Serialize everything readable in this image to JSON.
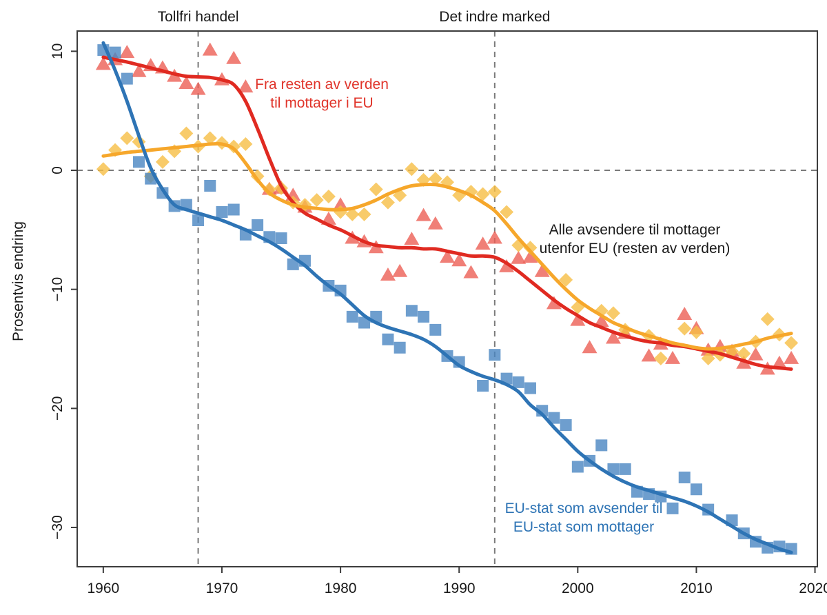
{
  "figure": {
    "ylabel": "Prosentvis endring",
    "event_labels": [
      {
        "text": "Tollfri handel",
        "year": 1968
      },
      {
        "text": "Det indre marked",
        "year": 1993
      }
    ]
  },
  "colors": {
    "red_line": "#E02A21",
    "red_marker": "#EC5F55",
    "yellow_line": "#F6A72B",
    "yellow_marker": "#F6BE45",
    "blue_line": "#2E74B5",
    "blue_marker": "#4A86C2",
    "dash_gray": "#7a7a7a",
    "border": "#3d3d3d",
    "text": "#1a1a1a"
  },
  "chart_data": {
    "type": "scatter",
    "title": "",
    "xlabel": "",
    "ylabel": "Prosentvis endring",
    "x_ticks": [
      1960,
      1970,
      1980,
      1990,
      2000,
      2010,
      2020
    ],
    "y_ticks": [
      10,
      0,
      -10,
      -20,
      -30
    ],
    "xlim": [
      1957.8,
      2020.2
    ],
    "ylim": [
      -33.3,
      11.7
    ],
    "grid": false,
    "hline_y": 0,
    "vlines": [
      {
        "year": 1968,
        "label": "Tollfri handel"
      },
      {
        "year": 1993,
        "label": "Det indre marked"
      }
    ],
    "years": [
      1960,
      1961,
      1962,
      1963,
      1964,
      1965,
      1966,
      1967,
      1968,
      1969,
      1970,
      1971,
      1972,
      1973,
      1974,
      1975,
      1976,
      1977,
      1978,
      1979,
      1980,
      1981,
      1982,
      1983,
      1984,
      1985,
      1986,
      1987,
      1988,
      1989,
      1990,
      1991,
      1992,
      1993,
      1994,
      1995,
      1996,
      1997,
      1998,
      1999,
      2000,
      2001,
      2002,
      2003,
      2004,
      2005,
      2006,
      2007,
      2008,
      2009,
      2010,
      2011,
      2012,
      2013,
      2014,
      2015,
      2016,
      2017,
      2018
    ],
    "series": [
      {
        "id": "red",
        "name": "Fra resten av verden til mottager i EU",
        "marker": "triangle",
        "label_lines": [
          "Fra resten av verden",
          "til mottager i EU"
        ],
        "points": [
          8.9,
          9.3,
          9.9,
          8.3,
          8.8,
          8.6,
          7.9,
          7.3,
          6.8,
          10.1,
          7.6,
          9.4,
          7.0,
          null,
          -1.6,
          -1.5,
          -2.1,
          -3.1,
          null,
          -4.1,
          -2.9,
          -5.7,
          -6.0,
          -6.5,
          -8.8,
          -8.5,
          -5.8,
          -3.8,
          -4.5,
          -7.3,
          -7.6,
          -8.6,
          -6.2,
          -5.7,
          -8.1,
          -7.4,
          -7.3,
          -8.5,
          -11.2,
          null,
          -12.6,
          -14.9,
          -12.7,
          -14.1,
          -13.7,
          null,
          -15.6,
          -14.6,
          -15.8,
          -12.1,
          -13.3,
          -15.1,
          -14.8,
          -15.2,
          -16.2,
          -15.5,
          -16.7,
          -16.2,
          -15.8
        ],
        "line": [
          9.5,
          9.3,
          9.1,
          8.85,
          8.6,
          8.35,
          8.1,
          7.9,
          7.85,
          7.8,
          7.6,
          7.2,
          5.8,
          3.5,
          1.0,
          -1.3,
          -2.7,
          -3.6,
          -4.1,
          -4.6,
          -5.0,
          -5.5,
          -6.0,
          -6.3,
          -6.4,
          -6.5,
          -6.5,
          -6.6,
          -6.6,
          -6.8,
          -7.0,
          -7.2,
          -7.2,
          -7.3,
          -7.8,
          -8.5,
          -9.3,
          -10.1,
          -10.9,
          -11.6,
          -12.2,
          -12.8,
          -13.2,
          -13.6,
          -13.9,
          -14.2,
          -14.4,
          -14.5,
          -14.7,
          -14.8,
          -15.0,
          -15.2,
          -15.4,
          -15.7,
          -16.0,
          -16.3,
          -16.5,
          -16.6,
          -16.7
        ]
      },
      {
        "id": "yellow",
        "name": "Alle avsendere til mottager utenfor EU (resten av verden)",
        "marker": "diamond",
        "label_lines": [
          "Alle avsendere til mottager",
          "utenfor EU (resten av verden)"
        ],
        "points": [
          0.1,
          1.7,
          2.7,
          2.4,
          -0.5,
          0.7,
          1.6,
          3.1,
          2.0,
          2.7,
          2.3,
          2.0,
          2.2,
          -0.5,
          -1.6,
          -1.5,
          -2.7,
          -2.9,
          -2.5,
          -2.2,
          -3.5,
          -3.7,
          -3.7,
          -1.6,
          -2.7,
          -2.1,
          0.1,
          -0.8,
          -0.7,
          -1.0,
          -2.1,
          -1.8,
          -2.0,
          -1.8,
          -3.5,
          -6.3,
          -6.5,
          null,
          null,
          -9.2,
          -11.5,
          null,
          -11.8,
          -12.0,
          -13.4,
          null,
          -13.9,
          -15.8,
          null,
          -13.3,
          -13.6,
          -15.8,
          -15.5,
          -15.2,
          -15.4,
          -14.4,
          -12.5,
          -13.8,
          -14.5
        ],
        "line": [
          1.2,
          1.35,
          1.5,
          1.6,
          1.7,
          1.8,
          1.9,
          2.0,
          2.1,
          2.2,
          2.2,
          1.8,
          0.6,
          -0.8,
          -1.9,
          -2.5,
          -2.9,
          -3.1,
          -3.2,
          -3.3,
          -3.3,
          -3.2,
          -2.9,
          -2.5,
          -2.0,
          -1.6,
          -1.3,
          -1.2,
          -1.2,
          -1.4,
          -1.7,
          -2.1,
          -2.7,
          -3.4,
          -4.5,
          -5.7,
          -6.8,
          -7.9,
          -9.0,
          -10.0,
          -10.9,
          -11.6,
          -12.2,
          -12.8,
          -13.2,
          -13.6,
          -13.9,
          -14.2,
          -14.5,
          -14.7,
          -14.9,
          -15.0,
          -14.95,
          -14.8,
          -14.6,
          -14.4,
          -14.1,
          -13.9,
          -13.7
        ]
      },
      {
        "id": "blue",
        "name": "EU-stat som avsender til EU-stat som mottager",
        "marker": "square",
        "label_lines": [
          "EU-stat som avsender til",
          "EU-stat som mottager"
        ],
        "points": [
          10.1,
          9.9,
          7.7,
          0.7,
          -0.7,
          -1.9,
          -3.0,
          -2.9,
          -4.2,
          -1.3,
          -3.5,
          -3.3,
          -5.4,
          -4.6,
          -5.6,
          -5.7,
          -7.9,
          -7.6,
          null,
          -9.7,
          -10.1,
          -12.3,
          -12.8,
          -12.3,
          -14.2,
          -14.9,
          -11.8,
          -12.3,
          -13.4,
          -15.6,
          -16.1,
          null,
          -18.1,
          -15.5,
          -17.5,
          -17.8,
          -18.3,
          -20.2,
          -20.8,
          -21.4,
          -24.9,
          -24.4,
          -23.1,
          -25.1,
          -25.1,
          -27.0,
          -27.2,
          -27.4,
          -28.4,
          -25.8,
          -26.8,
          -28.5,
          null,
          -29.4,
          -30.5,
          -31.2,
          -31.7,
          -31.6,
          -31.8
        ],
        "line": [
          10.7,
          8.4,
          5.8,
          2.9,
          0.2,
          -1.6,
          -2.9,
          -3.3,
          -3.6,
          -3.9,
          -4.2,
          -4.6,
          -5.0,
          -5.5,
          -6.0,
          -6.6,
          -7.3,
          -8.0,
          -8.9,
          -9.7,
          -10.4,
          -11.3,
          -12.2,
          -12.8,
          -13.2,
          -13.5,
          -13.8,
          -14.2,
          -14.8,
          -15.6,
          -16.4,
          -16.9,
          -17.3,
          -17.6,
          -18.0,
          -18.6,
          -19.7,
          -20.5,
          -21.6,
          -22.6,
          -23.6,
          -24.4,
          -25.1,
          -25.7,
          -26.2,
          -26.6,
          -26.9,
          -27.2,
          -27.5,
          -27.8,
          -28.2,
          -28.7,
          -29.3,
          -29.9,
          -30.5,
          -31.0,
          -31.4,
          -31.8,
          -32.1
        ]
      }
    ]
  }
}
